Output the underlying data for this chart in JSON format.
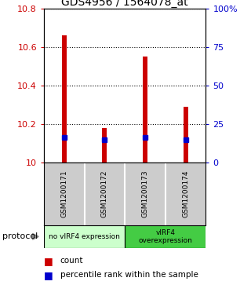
{
  "title": "GDS4956 / 1564078_at",
  "samples": [
    "GSM1200171",
    "GSM1200172",
    "GSM1200173",
    "GSM1200174"
  ],
  "bar_bottoms": [
    10.0,
    10.0,
    10.0,
    10.0
  ],
  "bar_tops": [
    10.66,
    10.18,
    10.55,
    10.29
  ],
  "percentile_values": [
    10.13,
    10.12,
    10.13,
    10.12
  ],
  "ylim_left": [
    10.0,
    10.8
  ],
  "ylim_right": [
    0,
    100
  ],
  "yticks_left": [
    10.0,
    10.2,
    10.4,
    10.6,
    10.8
  ],
  "yticks_right": [
    0,
    25,
    50,
    75,
    100
  ],
  "ytick_labels_left": [
    "10",
    "10.2",
    "10.4",
    "10.6",
    "10.8"
  ],
  "ytick_labels_right": [
    "0",
    "25",
    "50",
    "75",
    "100%"
  ],
  "bar_color": "#cc0000",
  "percentile_color": "#0000cc",
  "groups": [
    {
      "label": "no vIRF4 expression",
      "samples": [
        0,
        1
      ],
      "color": "#ccffcc"
    },
    {
      "label": "vIRF4\noverexpression",
      "samples": [
        2,
        3
      ],
      "color": "#44cc44"
    }
  ],
  "protocol_label": "protocol",
  "legend_count_label": "count",
  "legend_percentile_label": "percentile rank within the sample",
  "background_color": "#ffffff",
  "sample_box_color": "#cccccc",
  "bar_width": 0.12
}
